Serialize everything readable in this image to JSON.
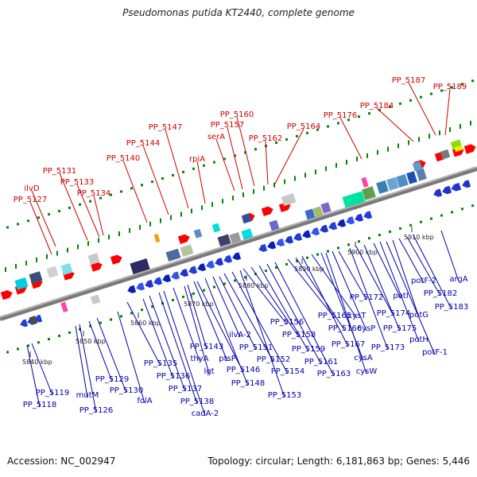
{
  "title": "Pseudomonas putida KT2440, complete genome",
  "footer": {
    "accession": "Accession: NC_002947",
    "summary": "Topology: circular; Length: 6,181,863 bp; Genes: 5,446"
  },
  "colors": {
    "forward_label": "#cc0000",
    "reverse_label": "#0000aa",
    "backbone": "#888888",
    "tick_marks": "#008800"
  },
  "scale_ticks": [
    "5840 kbp",
    "5850 kbp",
    "5860 kbp",
    "5870 kbp",
    "5880 kbp",
    "5890 kbp",
    "5900 kbp",
    "5910 kbp"
  ],
  "forward_genes": [
    "PP_5127",
    "ilvD",
    "PP_5131",
    "PP_5133",
    "PP_5134",
    "PP_5140",
    "PP_5144",
    "PP_5147",
    "rpiA",
    "serA",
    "PP_5157",
    "PP_5160",
    "PP_5162",
    "PP_5164",
    "PP_5176",
    "PP_5184",
    "PP_5187",
    "PP_5189"
  ],
  "reverse_genes": [
    "PP_5118",
    "PP_5119",
    "mutM",
    "PP_5126",
    "PP_5129",
    "PP_5130",
    "folA",
    "PP_5135",
    "PP_5136",
    "PP_5137",
    "PP_5138",
    "cadA-2",
    "thyA",
    "lgt",
    "PP_5143",
    "ptsP",
    "PP_5146",
    "PP_5148",
    "ilvA-2",
    "PP_5151",
    "PP_5152",
    "PP_5154",
    "PP_5153",
    "PP_5156",
    "PP_5158",
    "PP_5159",
    "PP_5161",
    "PP_5163",
    "PP_5165",
    "PP_5166",
    "PP_5167",
    "cysT",
    "cysA",
    "cysW",
    "cysP",
    "PP_5172",
    "PP_5173",
    "PP_5174",
    "PP_5175",
    "potI",
    "potH",
    "potF-1",
    "potG",
    "potF-2",
    "PP_5182",
    "PP_5183",
    "argA"
  ]
}
